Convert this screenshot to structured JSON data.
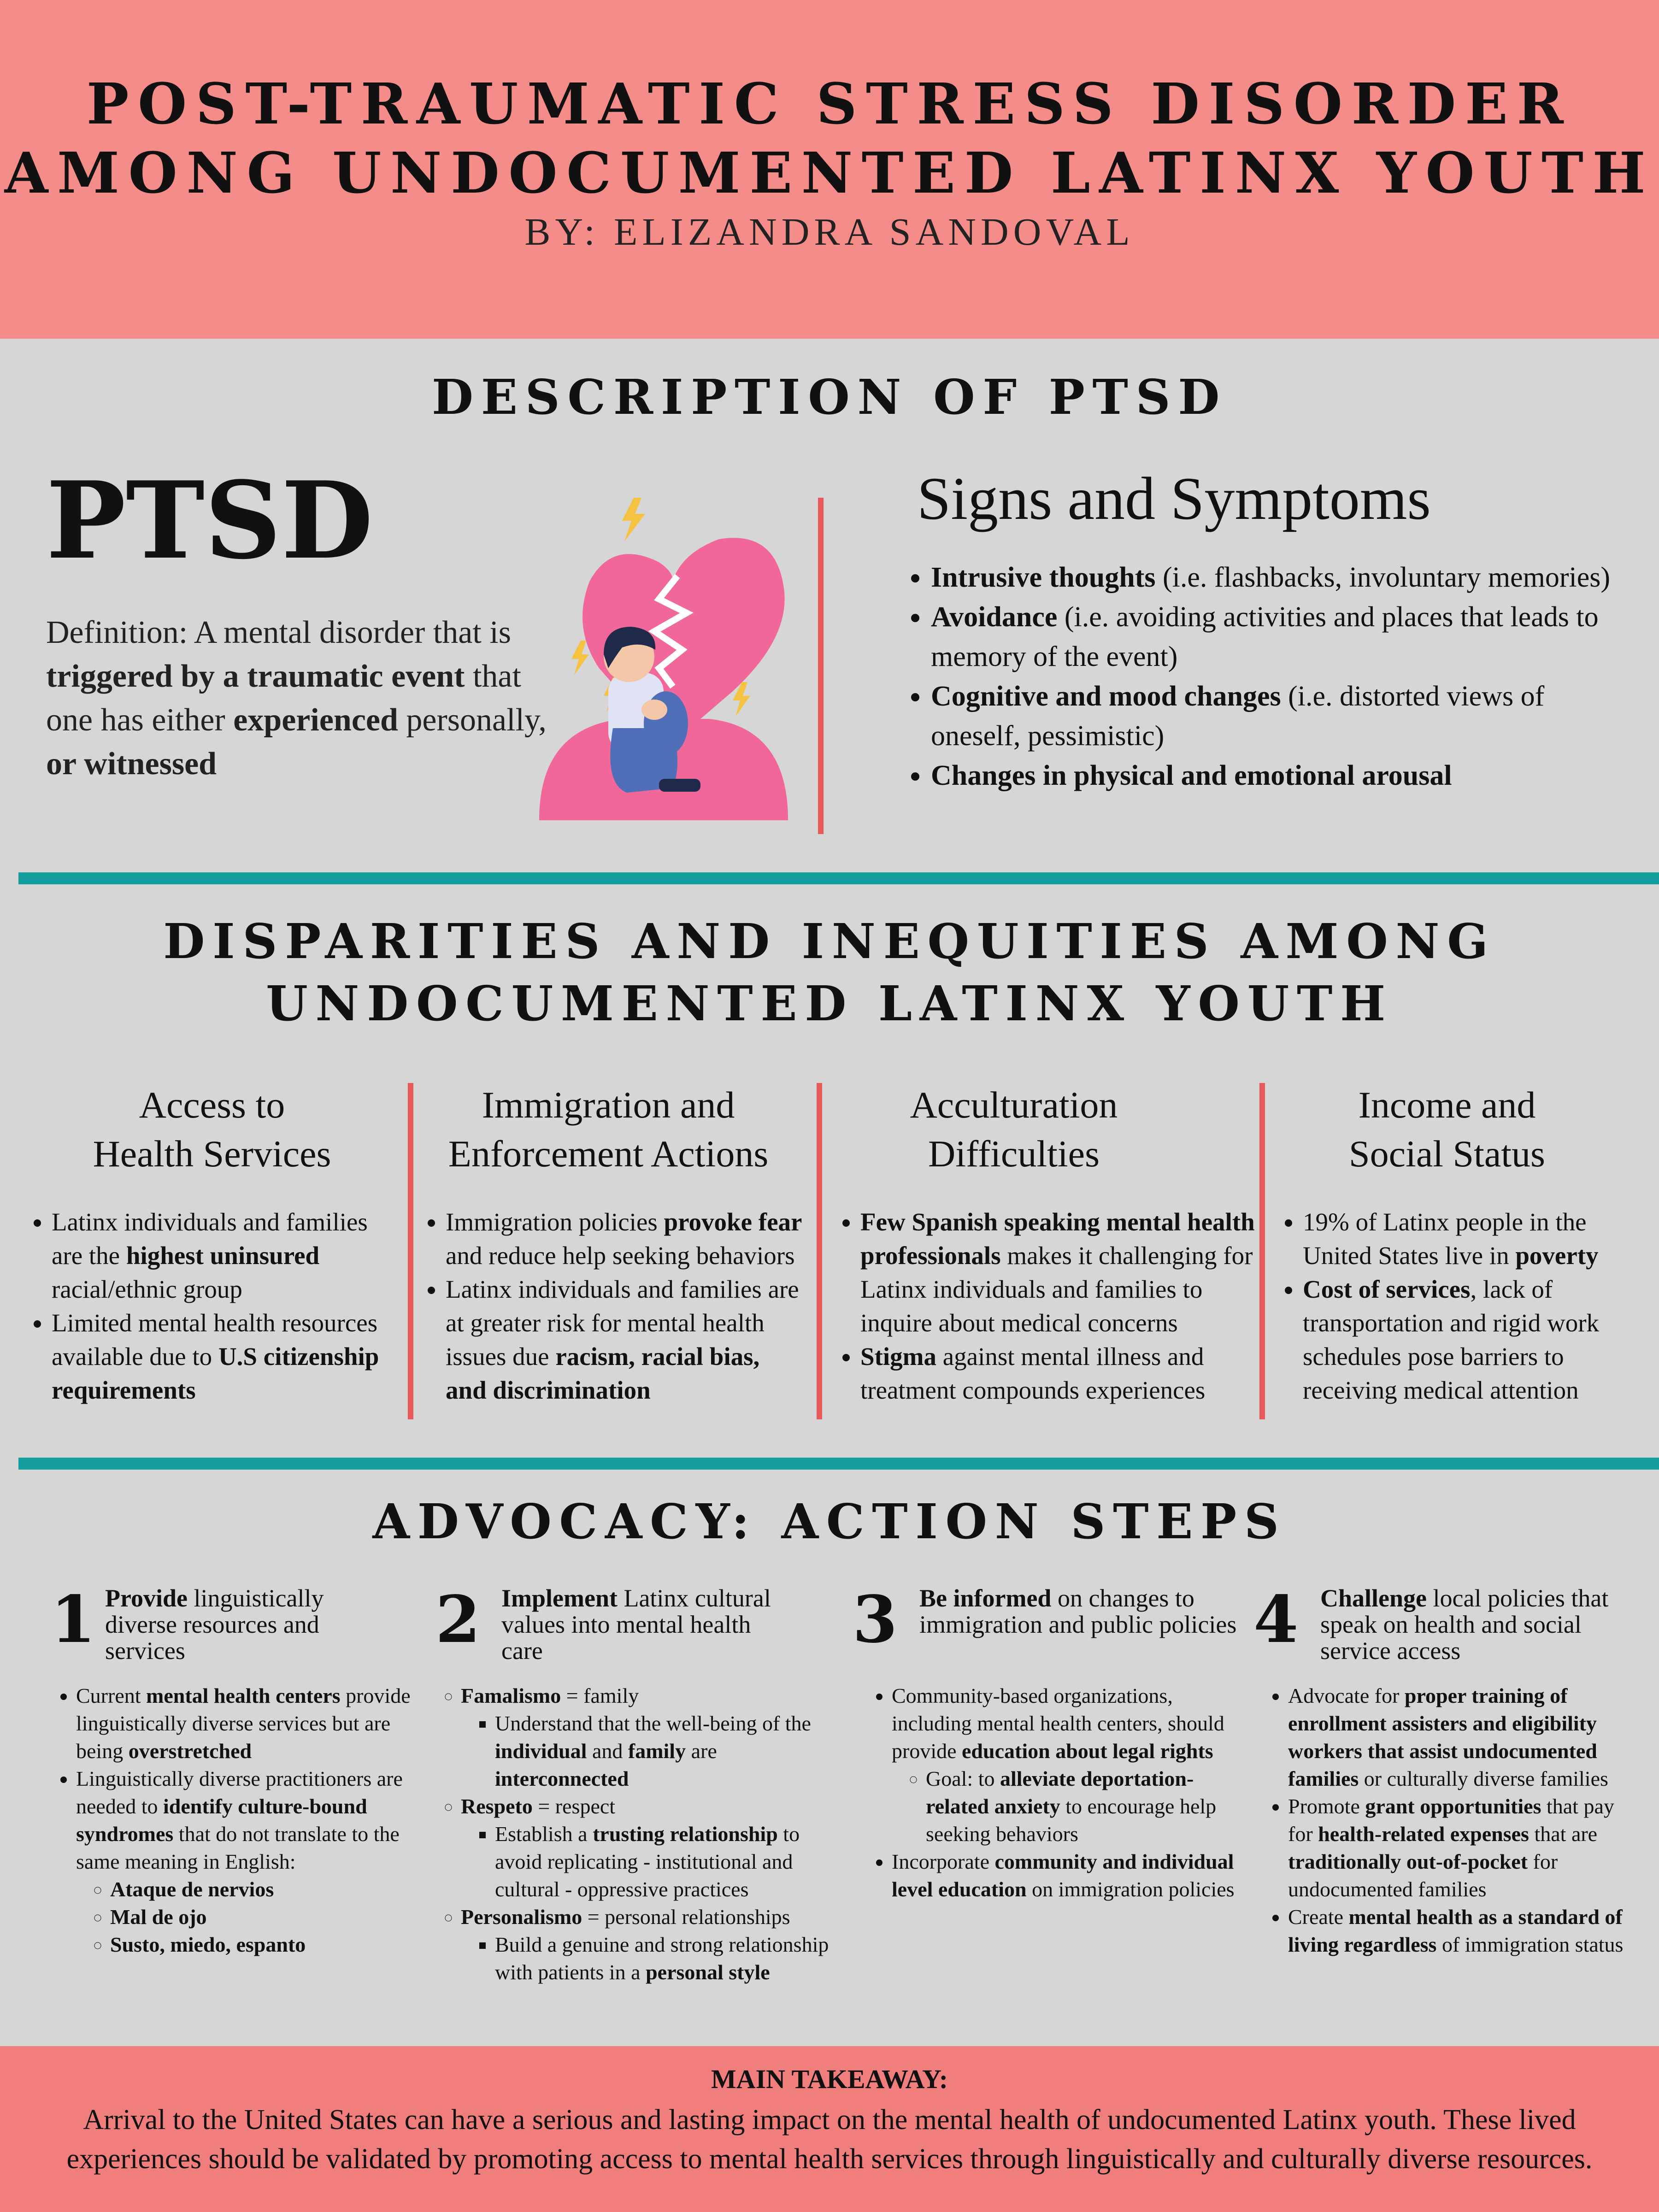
{
  "header": {
    "title_line1": "POST-TRAUMATIC STRESS DISORDER",
    "title_line2": "AMONG UNDOCUMENTED LATINX YOUTH",
    "byline": "BY: ELIZANDRA SANDOVAL",
    "bg_color": "#f48c8a"
  },
  "description": {
    "heading": "DESCRIPTION OF PTSD",
    "big_label": "PTSD",
    "definition": {
      "t1": "Definition: A mental disorder that is ",
      "b1": "triggered by a traumatic event",
      "t2": " that one has either ",
      "b2": "experienced",
      "t3": " personally, ",
      "b3": "or witnessed"
    },
    "illustration_icon": "broken-heart-sad-person-icon",
    "signs_title": "Signs and Symptoms",
    "signs": [
      {
        "bold": "Intrusive thoughts",
        "text": " (i.e. flashbacks, involuntary memories)"
      },
      {
        "bold": "Avoidance",
        "text": " (i.e. avoiding activities and places that leads to memory of the event)"
      },
      {
        "bold": "Cognitive and mood changes",
        "text": " (i.e. distorted views of oneself, pessimistic)"
      },
      {
        "bold": "Changes in physical and emotional arousal",
        "text": ""
      }
    ]
  },
  "disparities": {
    "heading_line1": "DISPARITIES AND INEQUITIES AMONG",
    "heading_line2": "UNDOCUMENTED LATINX YOUTH",
    "columns": [
      {
        "title_line1": "Access to",
        "title_line2": "Health Services",
        "items": [
          {
            "t1": "Latinx individuals and families are the ",
            "b1": "highest uninsured",
            "t2": " racial/ethnic group",
            "b2": ""
          },
          {
            "t1": "Limited mental health resources available due to ",
            "b1": "U.S citizenship requirements",
            "t2": "",
            "b2": ""
          }
        ]
      },
      {
        "title_line1": "Immigration and",
        "title_line2": "Enforcement Actions",
        "items": [
          {
            "t1": "Immigration policies ",
            "b1": "provoke fear",
            "t2": " and reduce help seeking behaviors",
            "b2": ""
          },
          {
            "t1": "Latinx individuals and families are at greater risk for mental health issues due ",
            "b1": "racism, racial bias, and discrimination",
            "t2": "",
            "b2": ""
          }
        ]
      },
      {
        "title_line1": "Acculturation",
        "title_line2": "Difficulties",
        "items": [
          {
            "t1": "",
            "b1": "Few Spanish speaking mental health professionals",
            "t2": " makes it challenging for Latinx individuals and families to inquire about medical concerns",
            "b2": ""
          },
          {
            "t1": "",
            "b1": "Stigma",
            "t2": " against mental illness and treatment compounds experiences",
            "b2": ""
          }
        ]
      },
      {
        "title_line1": "Income and",
        "title_line2": "Social Status",
        "items": [
          {
            "t1": "19% of Latinx people in the United States live in ",
            "b1": "poverty",
            "t2": "",
            "b2": ""
          },
          {
            "t1": "",
            "b1": "Cost of services",
            "t2": ", lack of transportation and rigid work schedules pose barriers to receiving medical attention",
            "b2": ""
          }
        ]
      }
    ]
  },
  "advocacy": {
    "heading": "ADVOCACY: ACTION STEPS",
    "steps": [
      {
        "number": "1",
        "head_bold": "Provide",
        "head_text": " linguistically diverse resources and services",
        "b1": {
          "t1": "Current ",
          "b1": "mental health centers",
          "t2": " provide linguistically diverse services but are being ",
          "b2": "overstretched"
        },
        "b2": {
          "t1": "Linguistically diverse practitioners are needed to ",
          "b1": "identify culture-bound syndromes",
          "t2": " that do not translate to the same meaning in English:"
        },
        "subs": [
          "Ataque de nervios",
          "Mal de ojo",
          "Susto, miedo, espanto"
        ]
      },
      {
        "number": "2",
        "head_bold": "Implement",
        "head_text": " Latinx cultural values into mental health care",
        "v1": {
          "bold": "Famalismo",
          "text": " = family"
        },
        "v1_sub": {
          "t1": "Understand that the well-being of the ",
          "b1": "individual",
          "t2": " and ",
          "b2": "family",
          "t3": " are ",
          "b3": "interconnected"
        },
        "v2": {
          "bold": "Respeto",
          "text": " = respect"
        },
        "v2_sub": {
          "t1": "Establish a ",
          "b1": "trusting relationship",
          "t2": " to avoid replicating - institutional and cultural - oppressive practices"
        },
        "v3": {
          "bold": "Personalismo",
          "text": " = personal relationships"
        },
        "v3_sub": {
          "t1": "Build a genuine and strong relationship with patients in a ",
          "b1": "personal style"
        }
      },
      {
        "number": "3",
        "head_bold": "Be informed",
        "head_text": " on changes to immigration and public policies",
        "b1": {
          "t1": "Community-based organizations, including mental health centers, should provide ",
          "b1": "education about legal rights"
        },
        "b1_sub": {
          "t1": "Goal: to ",
          "b1": "alleviate deportation-related anxiety",
          "t2": " to encourage help seeking behaviors"
        },
        "b2": {
          "t1": "Incorporate ",
          "b1": "community and individual level education",
          "t2": " on immigration policies"
        }
      },
      {
        "number": "4",
        "head_bold": "Challenge",
        "head_text": " local policies that speak on health and social service access",
        "b1": {
          "t1": "Advocate for ",
          "b1": "proper training of enrollment assisters and eligibility workers that assist undocumented families",
          "t2": " or culturally diverse families"
        },
        "b2": {
          "t1": "Promote ",
          "b1": "grant opportunities",
          "t2": " that pay for ",
          "b2": "health-related expenses",
          "t3": " that are ",
          "b3": "traditionally out-of-pocket",
          "t4": " for undocumented families"
        },
        "b3": {
          "t1": "Create ",
          "b1": "mental health as a standard of living regardless",
          "t2": " of immigration status"
        }
      }
    ]
  },
  "footer": {
    "label": "MAIN TAKEAWAY:",
    "text": "Arrival to the United States can have a serious and lasting impact on the mental health of undocumented Latinx youth. These lived experiences should be validated by promoting access to mental health services through linguistically and culturally diverse resources.",
    "bg_color": "#ef7e7d"
  },
  "colors": {
    "background": "#d6d6d6",
    "divider_teal": "#169e9e",
    "divider_red": "#ea5a5a",
    "heart_pink": "#f2679a"
  }
}
